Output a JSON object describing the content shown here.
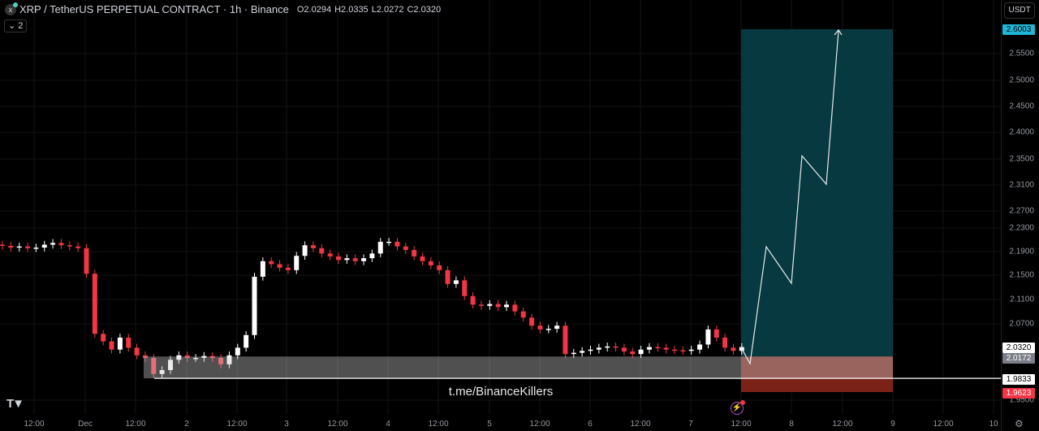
{
  "header": {
    "symbol": "XRP / TetherUS PERPETUAL CONTRACT · 1h · Binance",
    "open": "2.0294",
    "high": "2.0335",
    "low": "2.0272",
    "close": "2.0320",
    "indicators_collapsed": "2",
    "icon": "xrp-logo-icon"
  },
  "currency_select": "USDT",
  "watermark": "t.me/BinanceKillers",
  "colors": {
    "up": "#ffffff",
    "down": "#f23645",
    "target_zone": "#063a40",
    "stop_zone": "#7a2218",
    "demand_zone": "rgba(200,200,200,0.4)",
    "current_tag": "#5ab8d6"
  },
  "price_axis": {
    "scale": "log",
    "labels": [
      "2.5500",
      "2.5000",
      "2.4500",
      "2.4000",
      "2.3500",
      "2.3100",
      "2.2700",
      "2.2300",
      "2.1900",
      "2.1500",
      "2.1100",
      "2.0700",
      "1.9500"
    ],
    "tags": [
      {
        "value": "2.6003",
        "bg": "#22b5d6",
        "fg": "#000"
      },
      {
        "value": "2.0320",
        "bg": "#ffffff",
        "fg": "#000"
      },
      {
        "value": "2.0172",
        "bg": "#7b7e87",
        "fg": "#fff"
      },
      {
        "value": "1.9833",
        "bg": "#ffffff",
        "fg": "#000"
      },
      {
        "value": "1.9623",
        "bg": "#f23645",
        "fg": "#fff"
      }
    ]
  },
  "time_axis": [
    "12:00",
    "Dec",
    "12:00",
    "2",
    "12:00",
    "3",
    "12:00",
    "4",
    "12:00",
    "5",
    "12:00",
    "6",
    "12:00",
    "7",
    "12:00",
    "8",
    "12:00",
    "9",
    "12:00",
    "10"
  ],
  "chart_data": {
    "type": "candlestick",
    "interval": "1h",
    "closes": [
      2.198,
      2.195,
      2.197,
      2.194,
      2.195,
      2.2,
      2.203,
      2.199,
      2.197,
      2.194,
      2.151,
      2.053,
      2.041,
      2.028,
      2.047,
      2.031,
      2.019,
      2.015,
      1.99,
      1.996,
      2.012,
      2.019,
      2.015,
      2.015,
      2.018,
      2.015,
      2.005,
      2.019,
      2.031,
      2.051,
      2.146,
      2.172,
      2.167,
      2.161,
      2.157,
      2.181,
      2.199,
      2.194,
      2.185,
      2.18,
      2.174,
      2.177,
      2.172,
      2.177,
      2.185,
      2.205,
      2.205,
      2.197,
      2.191,
      2.18,
      2.172,
      2.165,
      2.157,
      2.134,
      2.14,
      2.114,
      2.1,
      2.098,
      2.101,
      2.096,
      2.1,
      2.089,
      2.079,
      2.066,
      2.06,
      2.061,
      2.066,
      2.021,
      2.023,
      2.026,
      2.028,
      2.031,
      2.033,
      2.031,
      2.025,
      2.021,
      2.028,
      2.032,
      2.031,
      2.028,
      2.027,
      2.026,
      2.028,
      2.036,
      2.06,
      2.047,
      2.031,
      2.026,
      2.032
    ],
    "position": {
      "type": "long",
      "entry": 2.0172,
      "target": 2.6003,
      "stop": 1.9623
    },
    "demand_zone": [
      1.9833,
      2.0172
    ],
    "horizontal_line": 1.9833
  }
}
